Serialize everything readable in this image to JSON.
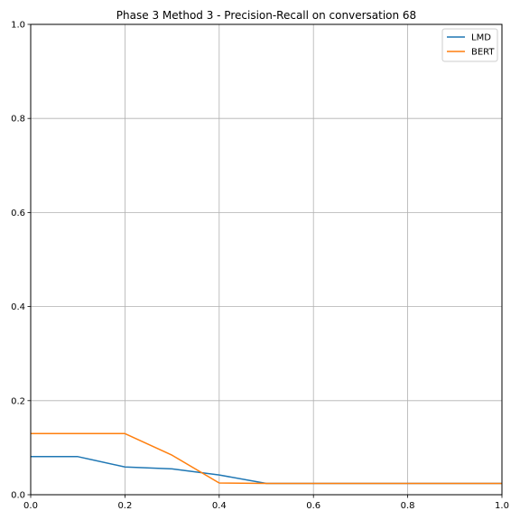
{
  "chart_data": {
    "type": "line",
    "title": "Phase 3 Method 3 - Precision-Recall on conversation 68",
    "xlabel": "",
    "ylabel": "",
    "xlim": [
      0,
      1
    ],
    "ylim": [
      0,
      1
    ],
    "x_ticks": [
      "0.0",
      "0.2",
      "0.4",
      "0.6",
      "0.8",
      "1.0"
    ],
    "y_ticks": [
      "0.0",
      "0.2",
      "0.4",
      "0.6",
      "0.8",
      "1.0"
    ],
    "grid": true,
    "legend_position": "top-right",
    "series": [
      {
        "name": "LMD",
        "color": "#1f77b4",
        "x": [
          0.0,
          0.1,
          0.2,
          0.3,
          0.4,
          0.5,
          0.6,
          0.7,
          0.8,
          0.9,
          1.0
        ],
        "y": [
          0.081,
          0.081,
          0.059,
          0.055,
          0.042,
          0.024,
          0.024,
          0.024,
          0.024,
          0.024,
          0.024
        ]
      },
      {
        "name": "BERT",
        "color": "#ff7f0e",
        "x": [
          0.0,
          0.1,
          0.2,
          0.3,
          0.4,
          0.5,
          0.6,
          0.7,
          0.8,
          0.9,
          1.0
        ],
        "y": [
          0.13,
          0.13,
          0.13,
          0.084,
          0.025,
          0.024,
          0.024,
          0.024,
          0.024,
          0.024,
          0.024
        ]
      }
    ]
  }
}
